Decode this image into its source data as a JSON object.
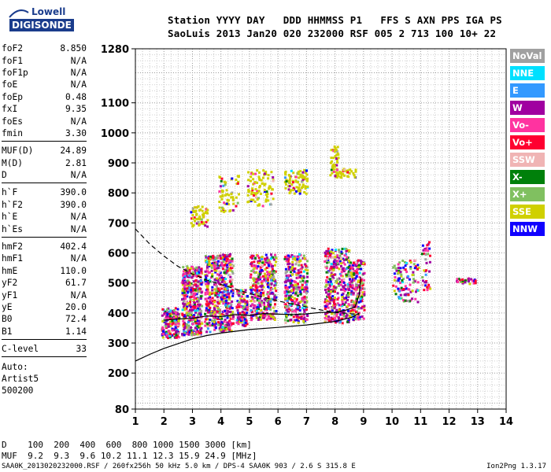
{
  "logo": {
    "line1": "Lowell",
    "line2": "DIGISONDE"
  },
  "header": {
    "row1": "Station YYYY DAY   DDD HHMMSS P1   FFS S AXN PPS IGA PS",
    "row2": "SaoLuis 2013 Jan20 020 232000 RSF 005 2 713 100 10+ 22"
  },
  "params": {
    "group1": [
      {
        "name": "foF2",
        "value": "8.850"
      },
      {
        "name": "foF1",
        "value": "N/A"
      },
      {
        "name": "foF1p",
        "value": "N/A"
      },
      {
        "name": "foE",
        "value": "N/A"
      },
      {
        "name": "foEp",
        "value": "0.48"
      },
      {
        "name": "fxI",
        "value": "9.35"
      },
      {
        "name": "foEs",
        "value": "N/A"
      },
      {
        "name": "fmin",
        "value": "3.30"
      }
    ],
    "group2": [
      {
        "name": "MUF(D)",
        "value": "24.89"
      },
      {
        "name": "M(D)",
        "value": "2.81"
      },
      {
        "name": "D",
        "value": "N/A"
      }
    ],
    "group3": [
      {
        "name": "h`F",
        "value": "390.0"
      },
      {
        "name": "h`F2",
        "value": "390.0"
      },
      {
        "name": "h`E",
        "value": "N/A"
      },
      {
        "name": "h`Es",
        "value": "N/A"
      }
    ],
    "group4": [
      {
        "name": "hmF2",
        "value": "402.4"
      },
      {
        "name": "hmF1",
        "value": "N/A"
      },
      {
        "name": "hmE",
        "value": "110.0"
      },
      {
        "name": "yF2",
        "value": "61.7"
      },
      {
        "name": "yF1",
        "value": "N/A"
      },
      {
        "name": "yE",
        "value": "20.0"
      },
      {
        "name": "B0",
        "value": "72.4"
      },
      {
        "name": "B1",
        "value": "1.14"
      }
    ],
    "group5": [
      {
        "name": "C-level",
        "value": "33"
      }
    ],
    "auto": [
      "Auto:",
      "Artist5",
      "500200"
    ]
  },
  "legend": [
    {
      "label": "NoVal",
      "color": "#a0a0a0"
    },
    {
      "label": "NNE",
      "color": "#00e0ff"
    },
    {
      "label": "E",
      "color": "#3399ff"
    },
    {
      "label": "W",
      "color": "#a000a0"
    },
    {
      "label": "Vo-",
      "color": "#ff33a0"
    },
    {
      "label": "Vo+",
      "color": "#ff0030"
    },
    {
      "label": "SSW",
      "color": "#f0b4b4"
    },
    {
      "label": "X-",
      "color": "#00800a"
    },
    {
      "label": "X+",
      "color": "#80c060"
    },
    {
      "label": "SSE",
      "color": "#d0d000"
    },
    {
      "label": "NNW",
      "color": "#1000ff"
    }
  ],
  "footer": {
    "row1": "D    100  200  400  600  800 1000 1500 3000 [km]",
    "row2": "MUF  9.2  9.3  9.6 10.2 11.1 12.3 15.9 24.9 [MHz]",
    "bottom": "SAA0K_2013020232000.RSF / 260fx256h 50 kHz 5.0 km / DPS-4 SAA0K 903 / 2.6 S 315.8 E",
    "version": "Ion2Png 1.3.17"
  },
  "chart_data": {
    "type": "scatter",
    "xlim": [
      1,
      14
    ],
    "ylim": [
      80,
      1280
    ],
    "xticks": [
      1,
      2,
      3,
      4,
      5,
      6,
      7,
      8,
      9,
      10,
      11,
      12,
      13,
      14
    ],
    "yticks": [
      80,
      200,
      300,
      400,
      500,
      600,
      700,
      800,
      900,
      1000,
      1100,
      1280
    ],
    "grid": true,
    "profile_solid": [
      [
        1.0,
        240
      ],
      [
        1.5,
        262
      ],
      [
        2.0,
        282
      ],
      [
        2.5,
        298
      ],
      [
        3.0,
        314
      ],
      [
        3.5,
        325
      ],
      [
        4.0,
        333
      ],
      [
        5.0,
        345
      ],
      [
        6.0,
        352
      ],
      [
        7.0,
        360
      ],
      [
        8.0,
        372
      ],
      [
        8.6,
        386
      ],
      [
        8.85,
        400
      ]
    ],
    "profile_dashed": [
      [
        1.0,
        680
      ],
      [
        1.5,
        630
      ],
      [
        2.0,
        590
      ],
      [
        2.5,
        555
      ],
      [
        3.0,
        530
      ],
      [
        3.5,
        510
      ],
      [
        4.0,
        495
      ],
      [
        4.5,
        480
      ],
      [
        5.0,
        465
      ],
      [
        5.5,
        452
      ],
      [
        6.0,
        440
      ],
      [
        6.5,
        430
      ],
      [
        7.0,
        420
      ],
      [
        7.5,
        410
      ],
      [
        8.0,
        402
      ],
      [
        8.5,
        398
      ],
      [
        8.85,
        395
      ]
    ],
    "trace_solid": [
      [
        2.0,
        376
      ],
      [
        2.5,
        380
      ],
      [
        3.0,
        382
      ],
      [
        3.5,
        390
      ],
      [
        4.0,
        388
      ],
      [
        4.5,
        395
      ],
      [
        5.0,
        392
      ],
      [
        5.5,
        398
      ],
      [
        6.0,
        396
      ],
      [
        6.5,
        395
      ],
      [
        7.0,
        397
      ],
      [
        7.5,
        402
      ],
      [
        8.0,
        402
      ],
      [
        8.4,
        410
      ],
      [
        8.7,
        420
      ],
      [
        8.85,
        460
      ],
      [
        8.9,
        520
      ]
    ],
    "echo_clusters": [
      {
        "f": [
          1.9,
          2.5
        ],
        "h": [
          320,
          420
        ],
        "n": 180
      },
      {
        "f": [
          2.6,
          3.3
        ],
        "h": [
          330,
          560
        ],
        "n": 420
      },
      {
        "f": [
          3.4,
          4.4
        ],
        "h": [
          340,
          600
        ],
        "n": 520
      },
      {
        "f": [
          4.5,
          4.9
        ],
        "h": [
          360,
          480
        ],
        "n": 120
      },
      {
        "f": [
          5.0,
          5.9
        ],
        "h": [
          380,
          600
        ],
        "n": 360
      },
      {
        "f": [
          6.2,
          7.0
        ],
        "h": [
          370,
          600
        ],
        "n": 320
      },
      {
        "f": [
          7.6,
          8.5
        ],
        "h": [
          370,
          620
        ],
        "n": 380
      },
      {
        "f": [
          8.5,
          9.0
        ],
        "h": [
          380,
          580
        ],
        "n": 200
      },
      {
        "f": [
          10.0,
          10.9
        ],
        "h": [
          440,
          580
        ],
        "n": 110
      },
      {
        "f": [
          11.0,
          11.3
        ],
        "h": [
          480,
          640
        ],
        "n": 40
      },
      {
        "f": [
          12.2,
          12.9
        ],
        "h": [
          500,
          520
        ],
        "n": 30
      },
      {
        "f": [
          2.9,
          3.5
        ],
        "h": [
          690,
          760
        ],
        "n": 60
      },
      {
        "f": [
          3.9,
          4.6
        ],
        "h": [
          740,
          860
        ],
        "n": 60
      },
      {
        "f": [
          4.9,
          5.8
        ],
        "h": [
          760,
          880
        ],
        "n": 90
      },
      {
        "f": [
          6.2,
          7.0
        ],
        "h": [
          800,
          880
        ],
        "n": 90
      },
      {
        "f": [
          7.8,
          8.1
        ],
        "h": [
          860,
          960
        ],
        "n": 40
      },
      {
        "f": [
          7.9,
          8.7
        ],
        "h": [
          855,
          885
        ],
        "n": 40
      }
    ]
  }
}
